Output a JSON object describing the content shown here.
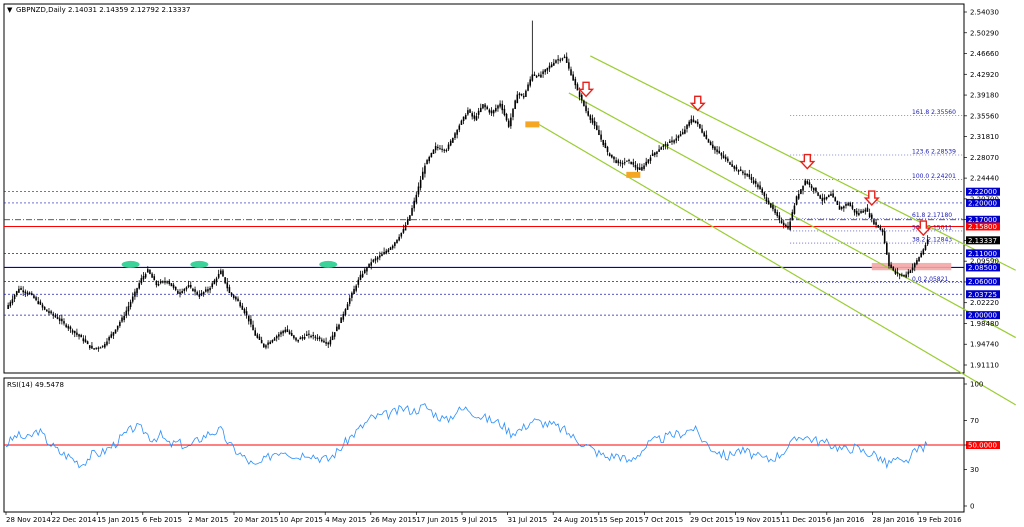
{
  "chart_data": {
    "type": "candlestick",
    "title": "GBPNZD,Daily",
    "ohlc": {
      "open": "2.14031",
      "high": "2.14359",
      "low": "2.12792",
      "close": "2.13337"
    },
    "x_tick_labels": [
      "28 Nov 2014",
      "22 Dec 2014",
      "15 Jan 2015",
      "6 Feb 2015",
      "2 Mar 2015",
      "20 Mar 2015",
      "10 Apr 2015",
      "4 May 2015",
      "26 May 2015",
      "17 Jun 2015",
      "9 Jul 2015",
      "31 Jul 2015",
      "24 Aug 2015",
      "15 Sep 2015",
      "7 Oct 2015",
      "29 Oct 2015",
      "19 Nov 2015",
      "11 Dec 2015",
      "6 Jan 2016",
      "28 Jan 2016",
      "19 Feb 2016"
    ],
    "y_tick_labels": [
      "2.54030",
      "2.50290",
      "2.46660",
      "2.42920",
      "2.39180",
      "2.35560",
      "2.31810",
      "2.28070",
      "2.24440",
      "2.20700",
      "2.17070",
      "2.13337",
      "2.09590",
      "2.05860",
      "2.02220",
      "1.98480",
      "1.94740",
      "1.91110"
    ],
    "ylim": [
      1.9111,
      2.5403
    ],
    "price_series": [
      [
        0,
        2.012
      ],
      [
        6,
        2.048
      ],
      [
        12,
        2.035
      ],
      [
        18,
        2.01
      ],
      [
        24,
        1.995
      ],
      [
        30,
        1.975
      ],
      [
        35,
        1.96
      ],
      [
        40,
        1.94
      ],
      [
        45,
        1.945
      ],
      [
        50,
        1.97
      ],
      [
        55,
        2.0
      ],
      [
        60,
        2.04
      ],
      [
        63,
        2.065
      ],
      [
        66,
        2.08
      ],
      [
        70,
        2.055
      ],
      [
        75,
        2.062
      ],
      [
        80,
        2.04
      ],
      [
        85,
        2.052
      ],
      [
        90,
        2.035
      ],
      [
        95,
        2.05
      ],
      [
        100,
        2.078
      ],
      [
        104,
        2.04
      ],
      [
        108,
        2.025
      ],
      [
        112,
        2.0
      ],
      [
        116,
        1.965
      ],
      [
        120,
        1.945
      ],
      [
        125,
        1.96
      ],
      [
        130,
        1.975
      ],
      [
        135,
        1.955
      ],
      [
        140,
        1.965
      ],
      [
        145,
        1.96
      ],
      [
        150,
        1.95
      ],
      [
        155,
        1.985
      ],
      [
        160,
        2.03
      ],
      [
        165,
        2.07
      ],
      [
        170,
        2.095
      ],
      [
        175,
        2.108
      ],
      [
        180,
        2.125
      ],
      [
        185,
        2.152
      ],
      [
        188,
        2.178
      ],
      [
        191,
        2.215
      ],
      [
        195,
        2.268
      ],
      [
        200,
        2.3
      ],
      [
        205,
        2.295
      ],
      [
        210,
        2.332
      ],
      [
        215,
        2.365
      ],
      [
        218,
        2.35
      ],
      [
        222,
        2.375
      ],
      [
        226,
        2.36
      ],
      [
        230,
        2.378
      ],
      [
        234,
        2.338
      ],
      [
        238,
        2.395
      ],
      [
        241,
        2.39
      ],
      [
        245,
        2.43
      ],
      [
        248,
        2.425
      ],
      [
        252,
        2.44
      ],
      [
        256,
        2.455
      ],
      [
        260,
        2.46
      ],
      [
        263,
        2.43
      ],
      [
        266,
        2.4
      ],
      [
        270,
        2.365
      ],
      [
        275,
        2.33
      ],
      [
        280,
        2.29
      ],
      [
        285,
        2.27
      ],
      [
        290,
        2.275
      ],
      [
        295,
        2.258
      ],
      [
        300,
        2.283
      ],
      [
        305,
        2.3
      ],
      [
        310,
        2.31
      ],
      [
        315,
        2.325
      ],
      [
        319,
        2.35
      ],
      [
        322,
        2.34
      ],
      [
        326,
        2.315
      ],
      [
        330,
        2.295
      ],
      [
        335,
        2.278
      ],
      [
        340,
        2.26
      ],
      [
        345,
        2.25
      ],
      [
        350,
        2.23
      ],
      [
        355,
        2.2
      ],
      [
        360,
        2.17
      ],
      [
        364,
        2.155
      ],
      [
        368,
        2.21
      ],
      [
        372,
        2.24
      ],
      [
        376,
        2.225
      ],
      [
        380,
        2.205
      ],
      [
        384,
        2.215
      ],
      [
        388,
        2.19
      ],
      [
        392,
        2.2
      ],
      [
        396,
        2.18
      ],
      [
        400,
        2.19
      ],
      [
        404,
        2.165
      ],
      [
        408,
        2.15
      ],
      [
        411,
        2.09
      ],
      [
        414,
        2.075
      ],
      [
        418,
        2.07
      ],
      [
        422,
        2.085
      ],
      [
        426,
        2.11
      ],
      [
        429,
        2.133
      ]
    ],
    "levels": [
      {
        "value": 2.22,
        "label": "2.22000",
        "kind": "support"
      },
      {
        "value": 2.2,
        "label": "2.20000",
        "kind": "support"
      },
      {
        "value": 2.17,
        "label": "2.17000",
        "kind": "dashdot"
      },
      {
        "value": 2.158,
        "label": "2.15800",
        "kind": "resistance"
      },
      {
        "value": 2.11,
        "label": "2.11000",
        "kind": "support"
      },
      {
        "value": 2.085,
        "label": "2.08500",
        "kind": "main"
      },
      {
        "value": 2.06,
        "label": "2.06000",
        "kind": "support"
      },
      {
        "value": 2.0372,
        "label": "2.03725",
        "kind": "support"
      },
      {
        "value": 2.0,
        "label": "2.00000",
        "kind": "support"
      }
    ],
    "fibonacci": [
      {
        "ratio": "161.8",
        "value": 2.3556,
        "label": "2.35560"
      },
      {
        "ratio": "123.6",
        "value": 2.2854,
        "label": "2.28539"
      },
      {
        "ratio": "100.0",
        "value": 2.242,
        "label": "2.24201"
      },
      {
        "ratio": "61.8",
        "value": 2.1718,
        "label": "2.17180"
      },
      {
        "ratio": "50.0",
        "value": 2.15,
        "label": "2.15011"
      },
      {
        "ratio": "38.2",
        "value": 2.1284,
        "label": "2.12843"
      },
      {
        "ratio": "0.0",
        "value": 2.0582,
        "label": "2.05821"
      }
    ],
    "current_price_label": "2.13337",
    "resistance_price_label": "2.15800",
    "rsi": {
      "label": "RSI(14) 49.5478",
      "period": 14,
      "last": 49.5478,
      "ylim": [
        0,
        100
      ],
      "ticks": [
        "100",
        "70",
        "50",
        "30",
        "0"
      ],
      "level": 50,
      "level_label": "50.0000",
      "values": [
        [
          0,
          50
        ],
        [
          5,
          58
        ],
        [
          10,
          55
        ],
        [
          15,
          62
        ],
        [
          20,
          52
        ],
        [
          25,
          44
        ],
        [
          30,
          40
        ],
        [
          35,
          34
        ],
        [
          40,
          42
        ],
        [
          45,
          44
        ],
        [
          50,
          50
        ],
        [
          55,
          58
        ],
        [
          60,
          65
        ],
        [
          64,
          62
        ],
        [
          68,
          55
        ],
        [
          72,
          58
        ],
        [
          76,
          50
        ],
        [
          80,
          52
        ],
        [
          85,
          48
        ],
        [
          90,
          55
        ],
        [
          95,
          60
        ],
        [
          100,
          62
        ],
        [
          104,
          50
        ],
        [
          108,
          44
        ],
        [
          112,
          38
        ],
        [
          116,
          32
        ],
        [
          120,
          37
        ],
        [
          125,
          44
        ],
        [
          130,
          46
        ],
        [
          135,
          40
        ],
        [
          140,
          44
        ],
        [
          145,
          40
        ],
        [
          150,
          38
        ],
        [
          155,
          46
        ],
        [
          160,
          56
        ],
        [
          165,
          64
        ],
        [
          170,
          72
        ],
        [
          175,
          74
        ],
        [
          180,
          76
        ],
        [
          185,
          80
        ],
        [
          190,
          78
        ],
        [
          195,
          82
        ],
        [
          200,
          75
        ],
        [
          205,
          70
        ],
        [
          210,
          78
        ],
        [
          215,
          80
        ],
        [
          220,
          74
        ],
        [
          226,
          70
        ],
        [
          230,
          68
        ],
        [
          235,
          60
        ],
        [
          240,
          63
        ],
        [
          245,
          70
        ],
        [
          250,
          68
        ],
        [
          255,
          66
        ],
        [
          260,
          62
        ],
        [
          265,
          55
        ],
        [
          270,
          50
        ],
        [
          275,
          44
        ],
        [
          280,
          40
        ],
        [
          285,
          42
        ],
        [
          290,
          36
        ],
        [
          295,
          44
        ],
        [
          300,
          52
        ],
        [
          305,
          55
        ],
        [
          310,
          58
        ],
        [
          315,
          60
        ],
        [
          320,
          64
        ],
        [
          324,
          55
        ],
        [
          328,
          48
        ],
        [
          332,
          44
        ],
        [
          336,
          40
        ],
        [
          340,
          46
        ],
        [
          345,
          44
        ],
        [
          350,
          40
        ],
        [
          355,
          38
        ],
        [
          360,
          42
        ],
        [
          365,
          50
        ],
        [
          370,
          58
        ],
        [
          375,
          55
        ],
        [
          380,
          52
        ],
        [
          385,
          50
        ],
        [
          390,
          46
        ],
        [
          395,
          48
        ],
        [
          400,
          44
        ],
        [
          405,
          42
        ],
        [
          410,
          34
        ],
        [
          414,
          38
        ],
        [
          418,
          34
        ],
        [
          422,
          42
        ],
        [
          426,
          48
        ],
        [
          429,
          49.5
        ]
      ]
    },
    "markers": {
      "down_arrows": [
        270,
        322,
        373,
        403,
        427
      ],
      "ovals": [
        {
          "t": 58,
          "value": 2.085
        },
        {
          "t": 90,
          "value": 2.085
        },
        {
          "t": 150,
          "value": 2.085
        }
      ],
      "swing_boxes": [
        {
          "t": 245,
          "value": 2.34
        },
        {
          "t": 292,
          "value": 2.25
        }
      ],
      "target_zone": {
        "t0": 403,
        "t1": 440,
        "v0": 2.08,
        "v1": 2.093
      }
    },
    "channel": {
      "upper": [
        [
          272,
          2.462
        ],
        [
          470,
          2.08
        ]
      ],
      "middle": [
        [
          262,
          2.396
        ],
        [
          470,
          1.96
        ]
      ],
      "lower": [
        [
          248,
          2.34
        ],
        [
          470,
          1.84
        ]
      ]
    },
    "colors": {
      "candle": "#000000",
      "channel": "#9acd32",
      "resistance": "#ff0000",
      "main_level": "#0000cc",
      "dotted_level": "#1a1ab3",
      "rsi_line": "#2a8fff",
      "rsi_level": "#ff0000",
      "arrow": "#e8201a",
      "oval": "#3cd39a",
      "swing_box": "#f5a623",
      "target_zone": "#f4a6a6"
    }
  }
}
